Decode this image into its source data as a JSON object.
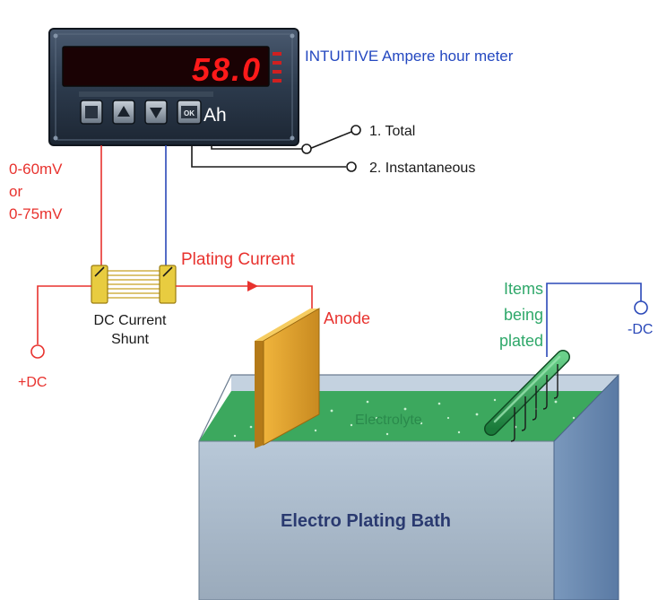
{
  "meter": {
    "title": "INTUITIVE Ampere hour meter",
    "display_value": "58.0",
    "unit": "Ah",
    "ok_label": "OK",
    "side_leds": [
      "1",
      "2",
      "3"
    ]
  },
  "switch": {
    "options": [
      "1. Total",
      "2. Instantaneous"
    ]
  },
  "shunt": {
    "input_range": [
      "0-60mV",
      "or",
      "0-75mV"
    ],
    "label_line1": "DC Current",
    "label_line2": "Shunt"
  },
  "circuit": {
    "current_label": "Plating Current",
    "anode_label": "Anode",
    "positive_terminal": "+DC",
    "negative_terminal": "-DC",
    "items_label": [
      "Items",
      "being",
      "plated"
    ]
  },
  "bath": {
    "electrolyte_label": "Electrolyte",
    "bath_label": "Electro Plating Bath"
  },
  "colors": {
    "red_wire": "#e8322e",
    "blue_wire": "#2a48b8",
    "dark_wire": "#1a1a1a",
    "label_blue": "#2448c0",
    "label_green": "#2fa86a",
    "display_red": "#ff1a1a",
    "bath_face": "#a8b8c8",
    "electrolyte": "#3ca85e",
    "anode": "#e0a530"
  }
}
